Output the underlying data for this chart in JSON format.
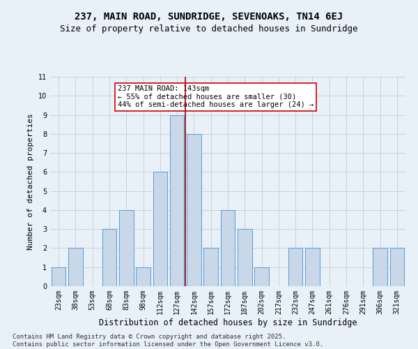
{
  "title1": "237, MAIN ROAD, SUNDRIDGE, SEVENOAKS, TN14 6EJ",
  "title2": "Size of property relative to detached houses in Sundridge",
  "xlabel": "Distribution of detached houses by size in Sundridge",
  "ylabel": "Number of detached properties",
  "bins": [
    "23sqm",
    "38sqm",
    "53sqm",
    "68sqm",
    "83sqm",
    "98sqm",
    "112sqm",
    "127sqm",
    "142sqm",
    "157sqm",
    "172sqm",
    "187sqm",
    "202sqm",
    "217sqm",
    "232sqm",
    "247sqm",
    "261sqm",
    "276sqm",
    "291sqm",
    "306sqm",
    "321sqm"
  ],
  "values": [
    1,
    2,
    0,
    3,
    4,
    1,
    6,
    9,
    8,
    2,
    4,
    3,
    1,
    0,
    2,
    2,
    0,
    0,
    0,
    2,
    2
  ],
  "bar_color": "#c8d8e8",
  "bar_edgecolor": "#5b9bd5",
  "vline_index": 7.5,
  "vline_color": "#990000",
  "annotation_text": "237 MAIN ROAD: 143sqm\n← 55% of detached houses are smaller (30)\n44% of semi-detached houses are larger (24) →",
  "annotation_box_color": "#ffffff",
  "annotation_box_edgecolor": "#cc0000",
  "ylim": [
    0,
    11
  ],
  "yticks": [
    0,
    1,
    2,
    3,
    4,
    5,
    6,
    7,
    8,
    9,
    10,
    11
  ],
  "grid_color": "#cccccc",
  "bg_color": "#e8f0f8",
  "footer1": "Contains HM Land Registry data © Crown copyright and database right 2025.",
  "footer2": "Contains public sector information licensed under the Open Government Licence v3.0.",
  "title1_fontsize": 10,
  "title2_fontsize": 9,
  "xlabel_fontsize": 8.5,
  "ylabel_fontsize": 8,
  "tick_fontsize": 7,
  "annotation_fontsize": 7.5,
  "footer_fontsize": 6.5
}
